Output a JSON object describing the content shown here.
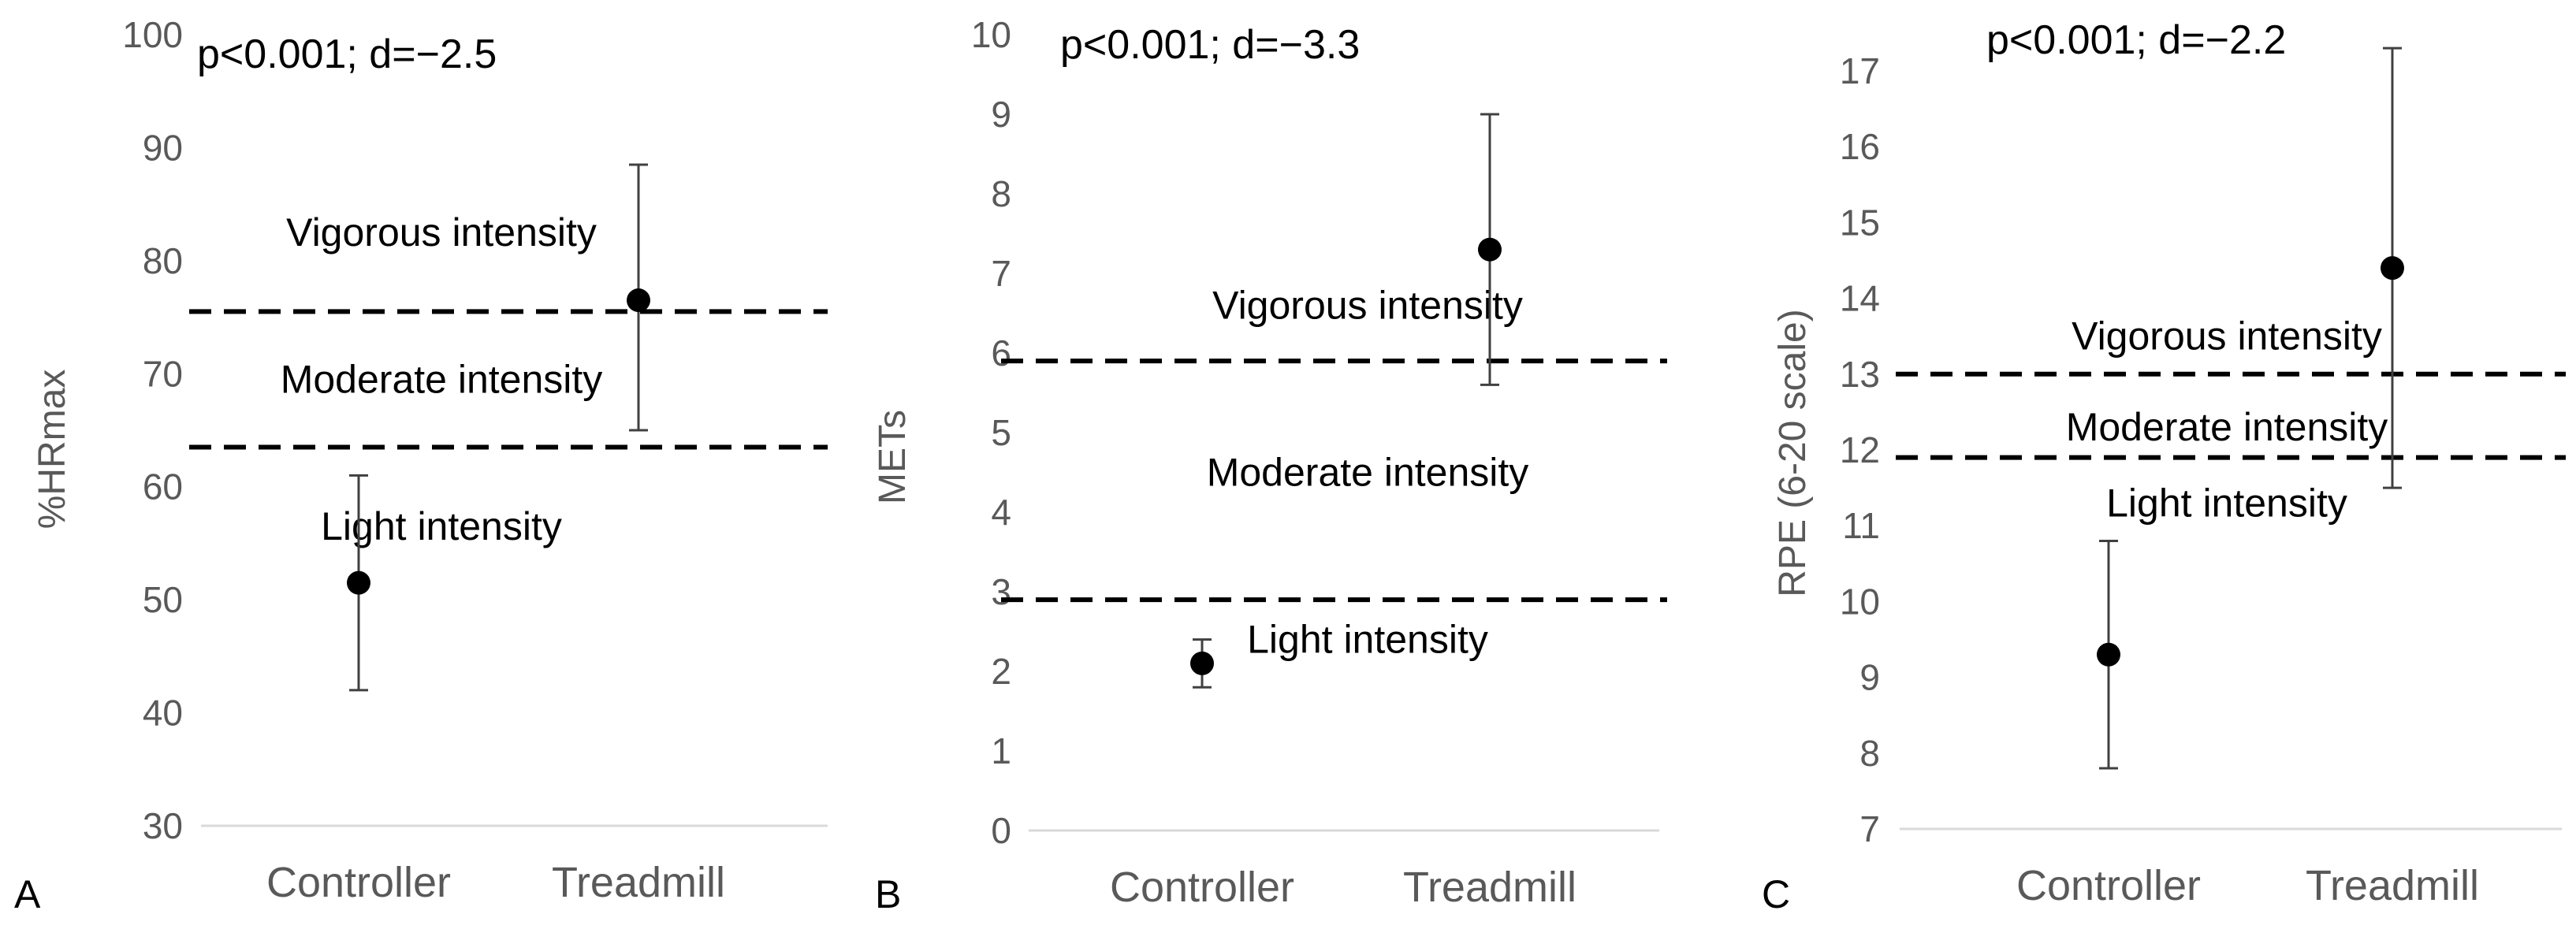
{
  "chart_data": [
    {
      "type": "scatter",
      "panel_label": "A",
      "ylabel": "%HRmax",
      "ylim": [
        30,
        100
      ],
      "yticks": [
        30,
        40,
        50,
        60,
        70,
        80,
        90,
        100
      ],
      "categories": [
        "Controller",
        "Treadmill"
      ],
      "annotation": "p<0.001; d=−2.5",
      "series": [
        {
          "values": [
            51.5,
            76.5
          ],
          "error_low": [
            42,
            65
          ],
          "error_high": [
            61,
            88.5
          ]
        }
      ],
      "thresholds": [
        75.5,
        63.5
      ],
      "zone_labels": [
        {
          "text": "Vigorous intensity",
          "y": 82.5
        },
        {
          "text": "Moderate intensity",
          "y": 69.5
        },
        {
          "text": "Light intensity",
          "y": 56.5
        }
      ]
    },
    {
      "type": "scatter",
      "panel_label": "B",
      "ylabel": "METs",
      "ylim": [
        0,
        10
      ],
      "yticks": [
        0,
        1,
        2,
        3,
        4,
        5,
        6,
        7,
        8,
        9,
        10
      ],
      "categories": [
        "Controller",
        "Treadmill"
      ],
      "annotation": "p<0.001; d=−3.3",
      "series": [
        {
          "values": [
            2.1,
            7.3
          ],
          "error_low": [
            1.8,
            5.6
          ],
          "error_high": [
            2.4,
            9.0
          ]
        }
      ],
      "thresholds": [
        5.9,
        2.9
      ],
      "zone_labels": [
        {
          "text": "Vigorous intensity",
          "y": 6.6
        },
        {
          "text": "Moderate intensity",
          "y": 4.5
        },
        {
          "text": "Light intensity",
          "y": 2.4
        }
      ]
    },
    {
      "type": "scatter",
      "panel_label": "C",
      "ylabel": "RPE (6-20 scale)",
      "ylim": [
        7,
        17.5
      ],
      "yticks": [
        7,
        8,
        9,
        10,
        11,
        12,
        13,
        14,
        15,
        16,
        17
      ],
      "categories": [
        "Controller",
        "Treadmill"
      ],
      "annotation": "p<0.001; d=−2.2",
      "series": [
        {
          "values": [
            9.3,
            14.4
          ],
          "error_low": [
            7.8,
            11.5
          ],
          "error_high": [
            10.8,
            17.3
          ]
        }
      ],
      "thresholds": [
        13.0,
        11.9
      ],
      "zone_labels": [
        {
          "text": "Vigorous intensity",
          "y": 13.5
        },
        {
          "text": "Moderate intensity",
          "y": 12.3
        },
        {
          "text": "Light intensity",
          "y": 11.3
        }
      ]
    }
  ]
}
